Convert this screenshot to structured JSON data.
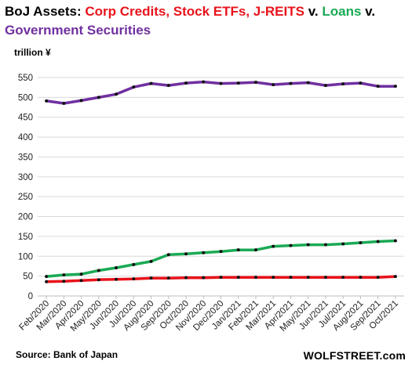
{
  "title": {
    "prefix": "BoJ Assets: ",
    "part1": "Corp Credits, Stock ETFs, J-REITS",
    "sep1": " v. ",
    "part2": "Loans",
    "sep2": " v. ",
    "part3": "Government Securities",
    "color1": "#e8131b",
    "color2": "#1aaa55",
    "color3": "#7030a0"
  },
  "unit_label": "trillion ¥",
  "source": "Source: Bank of Japan",
  "brand": "WOLFSTREET.com",
  "chart_data": {
    "type": "line",
    "title": "BoJ Assets: Corp Credits, Stock ETFs, J-REITS v. Loans v. Government Securities",
    "ylabel": "trillion ¥",
    "xlabel": "",
    "ylim": [
      0,
      550
    ],
    "yticks": [
      0,
      50,
      100,
      150,
      200,
      250,
      300,
      350,
      400,
      450,
      500,
      550
    ],
    "grid": true,
    "categories": [
      "Feb/2020",
      "Mar/2020",
      "Apr/2020",
      "May/2020",
      "Jun/2020",
      "Jul/2020",
      "Aug/2020",
      "Sep/2020",
      "Oct/2020",
      "Nov/2020",
      "Dec/2020",
      "Jan/2021",
      "Feb/2021",
      "Mar/2021",
      "Apr/2021",
      "May/2021",
      "Jun/2021",
      "Jul/2021",
      "Aug/2021",
      "Sep/2021",
      "Oct/2021"
    ],
    "series": [
      {
        "name": "Government Securities",
        "color": "#7030a0",
        "values": [
          491,
          485,
          492,
          500,
          508,
          526,
          535,
          530,
          536,
          539,
          535,
          536,
          538,
          532,
          535,
          537,
          530,
          534,
          536,
          528,
          528
        ]
      },
      {
        "name": "Loans",
        "color": "#1aaa55",
        "values": [
          49,
          53,
          55,
          64,
          71,
          79,
          87,
          104,
          106,
          109,
          112,
          116,
          116,
          125,
          127,
          129,
          129,
          131,
          134,
          137,
          139
        ]
      },
      {
        "name": "Corp Credits, Stock ETFs, J-REITS",
        "color": "#e8131b",
        "values": [
          36,
          37,
          39,
          41,
          42,
          43,
          45,
          45,
          46,
          46,
          47,
          47,
          47,
          47,
          47,
          47,
          47,
          47,
          47,
          47,
          49
        ]
      }
    ]
  }
}
